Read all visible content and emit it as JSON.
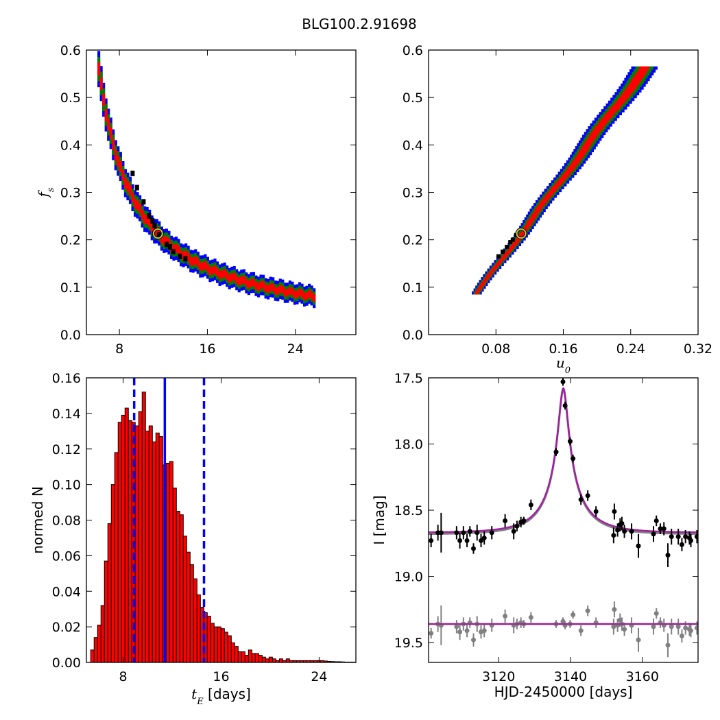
{
  "figure": {
    "suptitle": "BLG100.2.91698",
    "colors": {
      "sigma3": "#0000ff",
      "sigma2": "#008000",
      "sigma1": "#ff0000",
      "best_density": "#000000",
      "best_fit_marker_ring": "#cccc33",
      "hist_fill": "#ff0000",
      "hist_edge": "#000000",
      "median_line": "#0000ff",
      "model_curve": "#a020a0",
      "data_points": "#000000",
      "residual_points": "#808080"
    }
  },
  "chart_data": [
    {
      "type": "heatmap",
      "panel": "top-left",
      "title": "",
      "xlabel": "",
      "ylabel": "f",
      "ylabel_subscript": "s",
      "xlim": [
        5,
        29.5
      ],
      "ylim": [
        0.0,
        0.6
      ],
      "xticks": [
        8,
        16,
        24
      ],
      "xtick_labels": [
        "8",
        "16",
        "24"
      ],
      "yticks": [
        0.0,
        0.1,
        0.2,
        0.3,
        0.4,
        0.5,
        0.6
      ],
      "ytick_labels": [
        "0.0",
        "0.1",
        "0.2",
        "0.3",
        "0.4",
        "0.5",
        "0.6"
      ],
      "band": {
        "relation": "f_s ≈ A / (tE - x0)",
        "A": 1.85,
        "x0": 2.7,
        "tE_range": [
          6.0,
          25.6
        ],
        "levels": [
          {
            "name": "3-sigma",
            "color_key": "sigma3",
            "half_width": 0.03
          },
          {
            "name": "2-sigma",
            "color_key": "sigma2",
            "half_width": 0.02
          },
          {
            "name": "1-sigma",
            "color_key": "sigma1",
            "half_width": 0.011
          }
        ]
      },
      "black_cells": [
        [
          10.7,
          0.25
        ],
        [
          11.2,
          0.23
        ],
        [
          11.0,
          0.24
        ],
        [
          12.3,
          0.19
        ],
        [
          12.9,
          0.175
        ],
        [
          13.5,
          0.165
        ],
        [
          14.0,
          0.16
        ],
        [
          10.2,
          0.28
        ],
        [
          9.6,
          0.31
        ],
        [
          9.2,
          0.34
        ],
        [
          11.6,
          0.21
        ],
        [
          12.6,
          0.185
        ]
      ],
      "best_fit": {
        "x": 11.5,
        "y": 0.213
      }
    },
    {
      "type": "heatmap",
      "panel": "top-right",
      "title": "",
      "xlabel": "u",
      "xlabel_subscript": "0",
      "ylabel": "",
      "xlim": [
        0.0,
        0.32
      ],
      "ylim": [
        0.0,
        0.6
      ],
      "xticks": [
        0.08,
        0.16,
        0.24,
        0.32
      ],
      "xtick_labels": [
        "0.08",
        "0.16",
        "0.24",
        "0.32"
      ],
      "yticks": [
        0.0,
        0.1,
        0.2,
        0.3,
        0.4,
        0.5,
        0.6
      ],
      "ytick_labels": [
        "0.0",
        "0.1",
        "0.2",
        "0.3",
        "0.4",
        "0.5",
        "0.6"
      ],
      "band": {
        "relation": "u0 ≈ a + b*f_s + c*f_s^2",
        "a": 0.022,
        "b": 0.42,
        "c": 0.0,
        "fs_range": [
          0.085,
          0.565
        ],
        "levels": [
          {
            "name": "3-sigma",
            "color_key": "sigma3",
            "half_width": 0.0085
          },
          {
            "name": "2-sigma",
            "color_key": "sigma2",
            "half_width": 0.0058
          },
          {
            "name": "1-sigma",
            "color_key": "sigma1",
            "half_width": 0.0032
          }
        ]
      },
      "black_cells": [
        [
          0.088,
          0.175
        ],
        [
          0.093,
          0.185
        ],
        [
          0.097,
          0.195
        ],
        [
          0.1,
          0.2
        ],
        [
          0.104,
          0.21
        ],
        [
          0.083,
          0.165
        ]
      ],
      "best_fit": {
        "x": 0.11,
        "y": 0.213
      }
    },
    {
      "type": "bar",
      "panel": "bottom-left",
      "title": "",
      "xlabel": "t",
      "xlabel_subscript": "E",
      "xlabel_suffix": " [days]",
      "ylabel": "normed N",
      "xlim": [
        5.0,
        27.0
      ],
      "ylim": [
        0.0,
        0.16
      ],
      "xticks": [
        8,
        16,
        24
      ],
      "xtick_labels": [
        "8",
        "16",
        "24"
      ],
      "yticks": [
        0.0,
        0.02,
        0.04,
        0.06,
        0.08,
        0.1,
        0.12,
        0.14,
        0.16
      ],
      "ytick_labels": [
        "0.00",
        "0.02",
        "0.04",
        "0.06",
        "0.08",
        "0.10",
        "0.12",
        "0.14",
        "0.16"
      ],
      "bin_start": 5.35,
      "bin_width": 0.28,
      "values": [
        0.007,
        0.014,
        0.021,
        0.032,
        0.057,
        0.078,
        0.1,
        0.118,
        0.135,
        0.139,
        0.143,
        0.136,
        0.135,
        0.133,
        0.141,
        0.152,
        0.13,
        0.133,
        0.124,
        0.129,
        0.127,
        0.111,
        0.112,
        0.113,
        0.098,
        0.085,
        0.083,
        0.071,
        0.062,
        0.055,
        0.047,
        0.038,
        0.031,
        0.028,
        0.026,
        0.022,
        0.02,
        0.02,
        0.019,
        0.017,
        0.015,
        0.011,
        0.009,
        0.006,
        0.006,
        0.004,
        0.007,
        0.005,
        0.005,
        0.004,
        0.003,
        0.002,
        0.003,
        0.002,
        0.001,
        0.002,
        0.001,
        0.002,
        0.001,
        0.001,
        0.001,
        0.001,
        0.001,
        0.001,
        0.001,
        0.001,
        0.001,
        0.001,
        0.0008,
        0.0006,
        0.0005,
        0.0004,
        0.0004,
        0.0003,
        0.0002,
        0.0002,
        0.0002,
        0.0002
      ],
      "median_line": 11.4,
      "interval_lines": [
        8.9,
        14.6
      ]
    },
    {
      "type": "line",
      "panel": "bottom-right",
      "title": "",
      "xlabel": "HJD-2450000 [days]",
      "ylabel": "I [mag]",
      "xlim": [
        3100.5,
        3175.5
      ],
      "ylim": [
        19.65,
        17.5
      ],
      "y_inverted": true,
      "xticks": [
        3120,
        3140,
        3160
      ],
      "xtick_labels": [
        "3120",
        "3140",
        "3160"
      ],
      "yticks": [
        17.5,
        18.0,
        18.5,
        19.0,
        19.5
      ],
      "ytick_labels": [
        "17.5",
        "18.0",
        "18.5",
        "19.0",
        "19.5"
      ],
      "model": {
        "t0": 3138.0,
        "tE": 11.5,
        "u0": 0.11,
        "fs": 0.213,
        "baseline": 18.67
      },
      "residual_baseline": 19.36,
      "data": [
        [
          3101.2,
          18.73,
          0.05
        ],
        [
          3103.1,
          18.67,
          0.06
        ],
        [
          3104.0,
          18.67,
          0.15
        ],
        [
          3108.3,
          18.67,
          0.05
        ],
        [
          3109.2,
          18.73,
          0.06
        ],
        [
          3110.2,
          18.67,
          0.05
        ],
        [
          3111.2,
          18.73,
          0.05
        ],
        [
          3112.0,
          18.66,
          0.04
        ],
        [
          3113.0,
          18.79,
          0.04
        ],
        [
          3114.0,
          18.67,
          0.06
        ],
        [
          3115.1,
          18.73,
          0.05
        ],
        [
          3116.0,
          18.71,
          0.05
        ],
        [
          3118.1,
          18.67,
          0.05
        ],
        [
          3121.8,
          18.58,
          0.05
        ],
        [
          3124.2,
          18.66,
          0.06
        ],
        [
          3125.1,
          18.62,
          0.04
        ],
        [
          3126.2,
          18.59,
          0.04
        ],
        [
          3127.0,
          18.58,
          0.03
        ],
        [
          3129.0,
          18.46,
          0.04
        ],
        [
          3136.0,
          18.06,
          0.03
        ],
        [
          3137.9,
          17.53,
          0.03
        ],
        [
          3138.5,
          17.71,
          0.03
        ],
        [
          3139.9,
          17.98,
          0.03
        ],
        [
          3140.7,
          18.11,
          0.03
        ],
        [
          3142.9,
          18.42,
          0.04
        ],
        [
          3144.8,
          18.39,
          0.04
        ],
        [
          3147.1,
          18.51,
          0.04
        ],
        [
          3152.0,
          18.69,
          0.06
        ],
        [
          3152.2,
          18.51,
          0.06
        ],
        [
          3153.1,
          18.65,
          0.05
        ],
        [
          3153.8,
          18.61,
          0.05
        ],
        [
          3154.3,
          18.6,
          0.05
        ],
        [
          3155.0,
          18.66,
          0.05
        ],
        [
          3157.0,
          18.66,
          0.06
        ],
        [
          3158.9,
          18.77,
          0.09
        ],
        [
          3163.1,
          18.68,
          0.06
        ],
        [
          3163.9,
          18.58,
          0.04
        ],
        [
          3165.0,
          18.64,
          0.04
        ],
        [
          3166.0,
          18.64,
          0.05
        ],
        [
          3167.1,
          18.84,
          0.09
        ],
        [
          3168.1,
          18.7,
          0.06
        ],
        [
          3170.0,
          18.7,
          0.06
        ],
        [
          3171.0,
          18.76,
          0.05
        ],
        [
          3172.0,
          18.7,
          0.05
        ],
        [
          3173.1,
          18.71,
          0.05
        ],
        [
          3173.5,
          18.73,
          0.05
        ],
        [
          3175.2,
          18.7,
          0.05
        ]
      ],
      "residuals": [
        [
          3101.2,
          19.43,
          0.04
        ],
        [
          3103.1,
          19.36,
          0.06
        ],
        [
          3104.0,
          19.37,
          0.15
        ],
        [
          3108.3,
          19.38,
          0.05
        ],
        [
          3109.2,
          19.42,
          0.06
        ],
        [
          3110.2,
          19.36,
          0.05
        ],
        [
          3111.2,
          19.41,
          0.05
        ],
        [
          3112.0,
          19.35,
          0.04
        ],
        [
          3113.0,
          19.48,
          0.05
        ],
        [
          3114.0,
          19.36,
          0.06
        ],
        [
          3115.1,
          19.42,
          0.05
        ],
        [
          3116.0,
          19.41,
          0.05
        ],
        [
          3118.1,
          19.37,
          0.05
        ],
        [
          3121.8,
          19.3,
          0.05
        ],
        [
          3124.2,
          19.37,
          0.06
        ],
        [
          3125.1,
          19.36,
          0.04
        ],
        [
          3126.2,
          19.35,
          0.04
        ],
        [
          3127.0,
          19.36,
          0.03
        ],
        [
          3129.0,
          19.31,
          0.04
        ],
        [
          3136.0,
          19.36,
          0.03
        ],
        [
          3137.9,
          19.34,
          0.03
        ],
        [
          3138.5,
          19.37,
          0.03
        ],
        [
          3139.9,
          19.36,
          0.03
        ],
        [
          3140.7,
          19.29,
          0.03
        ],
        [
          3142.9,
          19.41,
          0.04
        ],
        [
          3144.8,
          19.26,
          0.04
        ],
        [
          3147.1,
          19.35,
          0.04
        ],
        [
          3152.0,
          19.38,
          0.06
        ],
        [
          3152.2,
          19.25,
          0.06
        ],
        [
          3153.1,
          19.37,
          0.05
        ],
        [
          3153.8,
          19.33,
          0.05
        ],
        [
          3154.3,
          19.36,
          0.05
        ],
        [
          3155.0,
          19.4,
          0.05
        ],
        [
          3157.0,
          19.37,
          0.06
        ],
        [
          3158.9,
          19.48,
          0.09
        ],
        [
          3163.1,
          19.38,
          0.06
        ],
        [
          3163.9,
          19.28,
          0.04
        ],
        [
          3165.0,
          19.35,
          0.04
        ],
        [
          3166.0,
          19.37,
          0.05
        ],
        [
          3167.1,
          19.52,
          0.09
        ],
        [
          3168.1,
          19.38,
          0.06
        ],
        [
          3170.0,
          19.38,
          0.06
        ],
        [
          3171.0,
          19.45,
          0.05
        ],
        [
          3172.0,
          19.39,
          0.05
        ],
        [
          3173.1,
          19.4,
          0.05
        ],
        [
          3173.5,
          19.41,
          0.05
        ],
        [
          3175.2,
          19.39,
          0.05
        ]
      ]
    }
  ]
}
